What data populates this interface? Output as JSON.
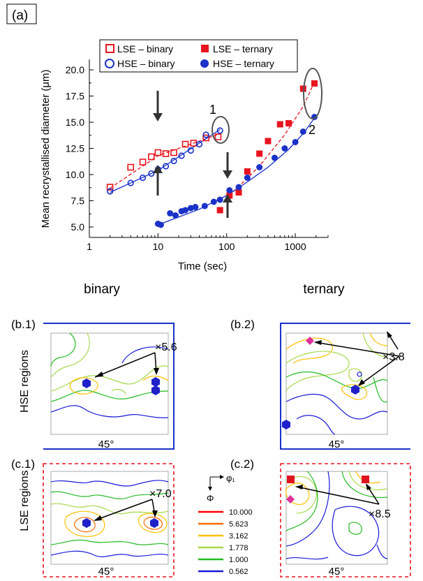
{
  "panel_a_label": "(a)",
  "ylabel": "Mean recrystallised diameter (μm)",
  "xlabel": "Time (sec)",
  "x_ticks": [
    "1",
    "10",
    "100",
    "1000"
  ],
  "y_ticks": [
    "5.0",
    "7.5",
    "10.0",
    "12.5",
    "15.0",
    "17.5",
    "20.0"
  ],
  "annotation_1": "1",
  "annotation_2": "2",
  "legend": {
    "lse_binary": "LSE – binary",
    "hse_binary": "HSE – binary",
    "lse_ternary": "LSE – ternary",
    "hse_ternary": "HSE – ternary"
  },
  "col_binary": "binary",
  "col_ternary": "ternary",
  "row_hse": "HSE regions",
  "row_lse": "LSE regions",
  "label_b1": "(b.1)",
  "label_b2": "(b.2)",
  "label_c1": "(c.1)",
  "label_c2": "(c.2)",
  "mult_b1": "×5.6",
  "mult_b2": "×3.8",
  "mult_c1": "×7.0",
  "mult_c2": "×8.5",
  "angle_label": "45°",
  "axis_phi1": "φ₁",
  "axis_Phi": "Φ",
  "contour_levels": [
    "10.000",
    "5.623",
    "3.162",
    "1.778",
    "1.000",
    "0.562"
  ],
  "colors": {
    "lse": "#e8141e",
    "hse": "#1a32c8",
    "level_10": "#ff0000",
    "level_5623": "#ff6a00",
    "level_3162": "#ffc000",
    "level_1778": "#a8d84a",
    "level_1000": "#22bb22",
    "level_0562": "#1a1ad8",
    "hex_marker": "#2020c8",
    "pink_marker": "#e0309a",
    "red_marker": "#e0141e"
  },
  "chart_data": {
    "type": "scatter",
    "x_scale": "log",
    "xlim": [
      1,
      3000
    ],
    "ylim": [
      4,
      21
    ],
    "series": [
      {
        "name": "LSE – binary",
        "marker": "open-square",
        "color": "#e8141e",
        "x": [
          2,
          4,
          6,
          8,
          10,
          13,
          17,
          25,
          33,
          50,
          75
        ],
        "y": [
          8.8,
          10.7,
          11.2,
          11.7,
          12.1,
          12.0,
          12.1,
          12.9,
          13.0,
          13.5,
          13.6
        ]
      },
      {
        "name": "HSE – binary",
        "marker": "open-circle",
        "color": "#1a32c8",
        "x": [
          2,
          4,
          6,
          8,
          10,
          13,
          17,
          22,
          30,
          40,
          50,
          80
        ],
        "y": [
          8.4,
          9.2,
          9.7,
          10.1,
          10.5,
          10.8,
          11.3,
          11.8,
          12.3,
          12.9,
          13.8,
          14.2
        ]
      },
      {
        "name": "LSE – ternary",
        "marker": "filled-square",
        "color": "#e8141e",
        "x": [
          80,
          110,
          150,
          200,
          300,
          400,
          600,
          800,
          1300,
          1900
        ],
        "y": [
          6.6,
          8.0,
          8.3,
          10.3,
          12.0,
          13.2,
          14.8,
          14.9,
          18.2,
          18.7
        ]
      },
      {
        "name": "HSE – ternary",
        "marker": "filled-circle",
        "color": "#1a32c8",
        "x": [
          10,
          11,
          15,
          18,
          22,
          25,
          30,
          35,
          48,
          65,
          80,
          110,
          150,
          200,
          300,
          500,
          700,
          1000,
          1300,
          1900
        ],
        "y": [
          5.3,
          5.2,
          6.3,
          6.1,
          6.5,
          6.6,
          6.8,
          6.9,
          7.0,
          7.4,
          7.6,
          8.5,
          8.8,
          9.7,
          10.7,
          11.6,
          12.5,
          13.1,
          14.1,
          15.5
        ]
      }
    ],
    "fits": [
      {
        "series": "LSE – binary",
        "style": "dashed",
        "x": [
          2,
          10,
          80
        ],
        "y": [
          8.7,
          11.8,
          13.9
        ]
      },
      {
        "series": "HSE – binary",
        "style": "solid",
        "x": [
          2,
          10,
          80
        ],
        "y": [
          8.3,
          10.4,
          14.3
        ]
      },
      {
        "series": "LSE – ternary",
        "style": "dashed",
        "x": [
          110,
          300,
          700,
          1300,
          1950
        ],
        "y": [
          8.0,
          10.8,
          13.8,
          16.5,
          19.0
        ]
      },
      {
        "series": "HSE – ternary",
        "style": "solid",
        "x": [
          10,
          40,
          100,
          200,
          400,
          800,
          1300,
          1950
        ],
        "y": [
          5.2,
          6.7,
          8.0,
          9.3,
          10.7,
          12.4,
          13.9,
          15.5
        ]
      }
    ]
  }
}
